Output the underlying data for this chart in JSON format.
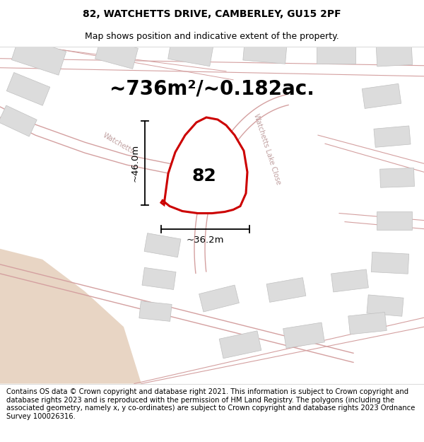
{
  "title_line1": "82, WATCHETTS DRIVE, CAMBERLEY, GU15 2PF",
  "title_line2": "Map shows position and indicative extent of the property.",
  "area_text": "~736m²/~0.182ac.",
  "label_number": "82",
  "dim_vertical": "~46.0m",
  "dim_horizontal": "~36.2m",
  "footer_text": "Contains OS data © Crown copyright and database right 2021. This information is subject to Crown copyright and database rights 2023 and is reproduced with the permission of HM Land Registry. The polygons (including the associated geometry, namely x, y co-ordinates) are subject to Crown copyright and database rights 2023 Ordnance Survey 100026316.",
  "bg_color": "#f2eded",
  "plot_color": "#cc0000",
  "plot_fill": "#ffffff",
  "road_color": "#d4a0a0",
  "road_fill": "#e8dfdf",
  "neighbor_fill": "#dcdcdc",
  "neighbor_edge": "#c0c0c0",
  "beige_fill": "#e8d5c4",
  "title_fontsize": 10,
  "subtitle_fontsize": 9,
  "area_fontsize": 20,
  "label_fontsize": 18,
  "dim_fontsize": 9.5,
  "road_label_fontsize": 7,
  "footer_fontsize": 7.2
}
